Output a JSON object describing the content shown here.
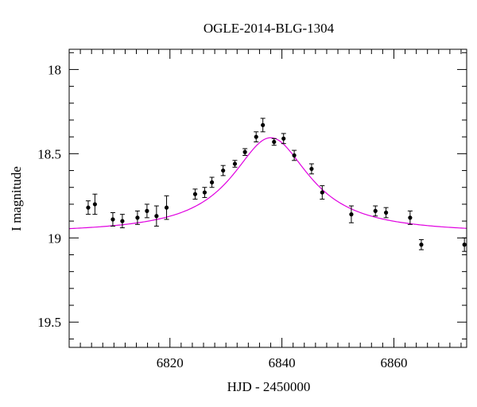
{
  "chart_data": {
    "type": "scatter",
    "title": "OGLE-2014-BLG-1304",
    "xlabel": "HJD - 2450000",
    "ylabel": "I magnitude",
    "xlim": [
      6802,
      6873
    ],
    "ylim": [
      19.65,
      17.88
    ],
    "y_inverted": true,
    "x_major_ticks": [
      6820,
      6840,
      6860
    ],
    "x_tick_labels": [
      "6820",
      "6840",
      "6860"
    ],
    "y_major_ticks": [
      18,
      18.5,
      19,
      19.5
    ],
    "y_tick_labels": [
      "18",
      "18.5",
      "19",
      "19.5"
    ],
    "grid": false,
    "legend": "none",
    "series": [
      {
        "kind": "points",
        "color": "#000000",
        "points": [
          {
            "x": 6805.4,
            "y": 18.82,
            "err": 0.04
          },
          {
            "x": 6806.6,
            "y": 18.8,
            "err": 0.06
          },
          {
            "x": 6809.8,
            "y": 18.89,
            "err": 0.04
          },
          {
            "x": 6811.5,
            "y": 18.9,
            "err": 0.04
          },
          {
            "x": 6814.2,
            "y": 18.88,
            "err": 0.04
          },
          {
            "x": 6815.9,
            "y": 18.84,
            "err": 0.04
          },
          {
            "x": 6817.6,
            "y": 18.87,
            "err": 0.06
          },
          {
            "x": 6819.4,
            "y": 18.82,
            "err": 0.07
          },
          {
            "x": 6824.5,
            "y": 18.74,
            "err": 0.03
          },
          {
            "x": 6826.2,
            "y": 18.73,
            "err": 0.03
          },
          {
            "x": 6827.5,
            "y": 18.67,
            "err": 0.03
          },
          {
            "x": 6829.5,
            "y": 18.6,
            "err": 0.03
          },
          {
            "x": 6831.6,
            "y": 18.56,
            "err": 0.02
          },
          {
            "x": 6833.4,
            "y": 18.49,
            "err": 0.02
          },
          {
            "x": 6835.4,
            "y": 18.4,
            "err": 0.03
          },
          {
            "x": 6836.6,
            "y": 18.33,
            "err": 0.04
          },
          {
            "x": 6838.6,
            "y": 18.43,
            "err": 0.02
          },
          {
            "x": 6840.3,
            "y": 18.41,
            "err": 0.03
          },
          {
            "x": 6842.2,
            "y": 18.51,
            "err": 0.03
          },
          {
            "x": 6845.3,
            "y": 18.59,
            "err": 0.03
          },
          {
            "x": 6847.2,
            "y": 18.73,
            "err": 0.04
          },
          {
            "x": 6852.4,
            "y": 18.86,
            "err": 0.05
          },
          {
            "x": 6856.7,
            "y": 18.84,
            "err": 0.03
          },
          {
            "x": 6858.6,
            "y": 18.85,
            "err": 0.03
          },
          {
            "x": 6862.9,
            "y": 18.88,
            "err": 0.04
          },
          {
            "x": 6864.9,
            "y": 19.04,
            "err": 0.03
          },
          {
            "x": 6872.6,
            "y": 19.04,
            "err": 0.04
          }
        ]
      },
      {
        "kind": "model-curve",
        "color": "#e000e0",
        "t0": 6838.0,
        "peak_mag": 18.405,
        "base_mag": 18.975,
        "half_width": 8.5
      }
    ]
  }
}
